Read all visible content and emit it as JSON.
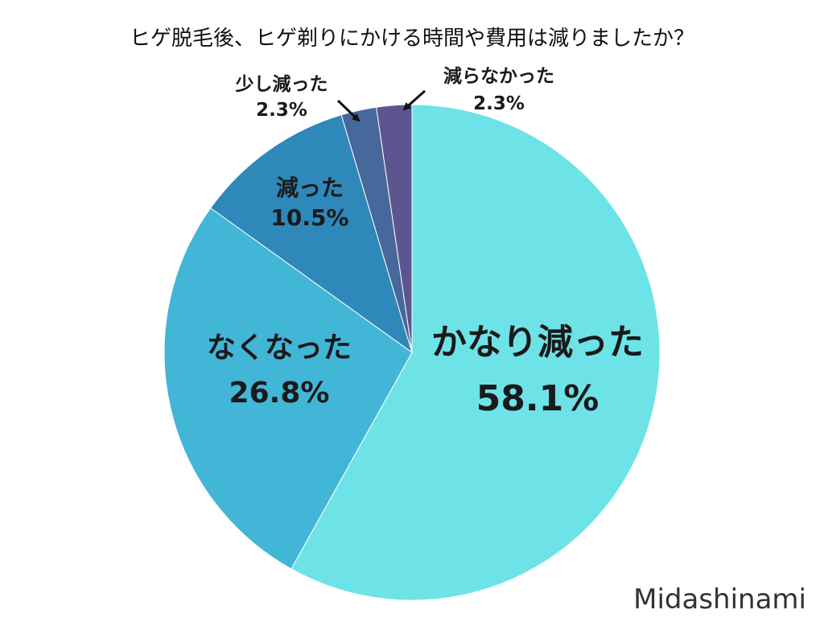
{
  "chart_data": {
    "type": "pie",
    "title": "ヒゲ脱毛後、ヒゲ剃りにかける時間や費用は減りましたか？",
    "categories": [
      "かなり減った",
      "なくなった",
      "減った",
      "少し減った",
      "減らなかった"
    ],
    "values": [
      58.1,
      26.8,
      10.5,
      2.3,
      2.3
    ],
    "value_labels": [
      "58.1%",
      "26.8%",
      "10.5%",
      "2.3%",
      "2.3%"
    ],
    "colors": [
      "#6de3e7",
      "#42b6d6",
      "#2e88ba",
      "#46689a",
      "#5c5590"
    ],
    "start": "12 o'clock",
    "direction": "clockwise",
    "legend": "none"
  },
  "watermark": "Midashinami"
}
